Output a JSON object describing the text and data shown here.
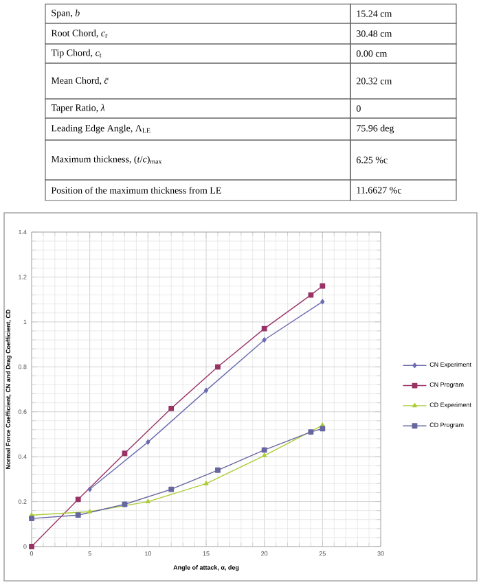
{
  "chart_data": [
    {
      "type": "other",
      "annotations": [
        "Span, *b*",
        "15.24 cm",
        "Root Chord, *c*$_{r}$",
        "30.48 cm",
        "Tip Chord, *c*$_{t}$",
        "0.00 cm",
        "Mean Chord, *c̄*",
        "20.32 cm",
        "Taper Ratio, *λ*",
        "0",
        "Leading Edge Angle, Λ$_{LE}$",
        "75.96 deg",
        "Maximum thickness, (*t*/*c*)$_{max}$",
        "6.25 %c",
        "Position of the maximum thickness from LE",
        "11.6627 %c"
      ]
    },
    {
      "type": "line",
      "xlabel": "Angle of attack, α, deg",
      "ylabel": "Normal Force Coefficient, CN and Drag Coefficient, CD",
      "xlim": [
        0,
        30
      ],
      "ylim": [
        0,
        1.4
      ],
      "xticks": [
        0,
        5,
        10,
        15,
        20,
        25,
        30
      ],
      "yticks": [
        0,
        0.2,
        0.4,
        0.6,
        0.8,
        1,
        1.2,
        1.4
      ],
      "grid": true,
      "legend": "right",
      "series": [
        {
          "name": "CN Experiment",
          "color": "#6b6bb0",
          "marker": "diamond",
          "x": [
            5,
            10,
            15,
            20,
            25
          ],
          "values": [
            0.255,
            0.465,
            0.695,
            0.92,
            1.09
          ]
        },
        {
          "name": "CN Program",
          "color": "#993366",
          "marker": "square",
          "x": [
            0,
            4,
            8,
            12,
            16,
            20,
            24,
            25
          ],
          "values": [
            0.0,
            0.21,
            0.415,
            0.615,
            0.8,
            0.97,
            1.12,
            1.16
          ]
        },
        {
          "name": "CD Experiment",
          "color": "#aacc33",
          "marker": "triangle",
          "x": [
            0,
            5,
            10,
            15,
            20,
            25
          ],
          "values": [
            0.14,
            0.155,
            0.2,
            0.28,
            0.405,
            0.54
          ]
        },
        {
          "name": "CD Program",
          "color": "#6666a0",
          "marker": "square",
          "x": [
            0,
            4,
            8,
            12,
            16,
            20,
            24,
            25
          ],
          "values": [
            0.125,
            0.14,
            0.188,
            0.255,
            0.34,
            0.43,
            0.51,
            0.525
          ]
        }
      ]
    }
  ]
}
